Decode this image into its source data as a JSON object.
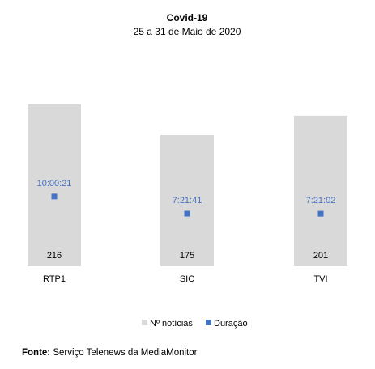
{
  "chart_data": {
    "type": "bar",
    "title": "Covid-19",
    "subtitle": "25 a 31 de Maio de 2020",
    "categories": [
      "RTP1",
      "SIC",
      "TVI"
    ],
    "series": [
      {
        "name": "Nº notícias",
        "values": [
          216,
          175,
          201
        ],
        "color": "#D9D9D9"
      },
      {
        "name": "Duração",
        "values": [
          "10:00:21",
          "7:21:41",
          "7:21:02"
        ],
        "color": "#4472C4"
      }
    ],
    "grid": false,
    "legend": "bottom"
  },
  "source": {
    "prefix": "Fonte:",
    "text": "Serviço Telenews da MediaMonitor"
  }
}
